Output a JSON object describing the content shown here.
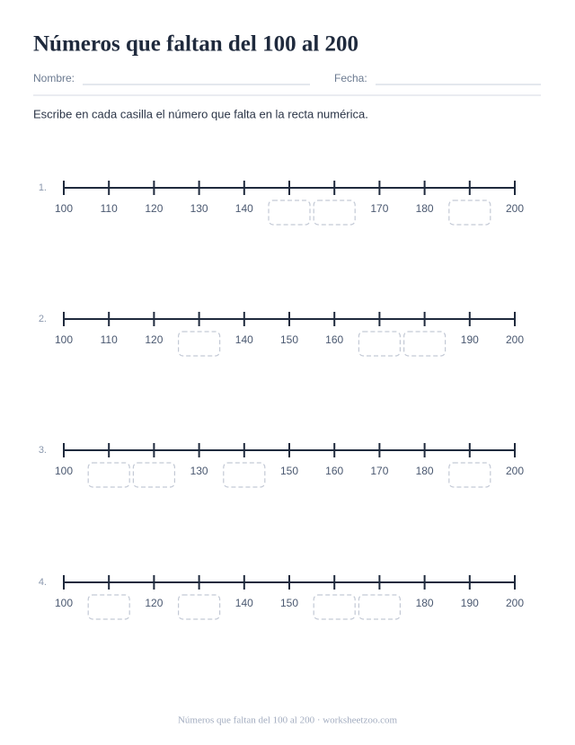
{
  "header": {
    "title": "Números que faltan del 100 al 200",
    "name_label": "Nombre:",
    "date_label": "Fecha:",
    "instruction": "Escribe en cada casilla el número que falta en la recta numérica."
  },
  "number_lines": [
    {
      "number": "1.",
      "labels": [
        100,
        110,
        120,
        130,
        140,
        null,
        null,
        170,
        180,
        null,
        200
      ]
    },
    {
      "number": "2.",
      "labels": [
        100,
        110,
        120,
        null,
        140,
        150,
        160,
        null,
        null,
        190,
        200
      ]
    },
    {
      "number": "3.",
      "labels": [
        100,
        null,
        null,
        130,
        null,
        150,
        160,
        170,
        180,
        null,
        200
      ]
    },
    {
      "number": "4.",
      "labels": [
        100,
        null,
        120,
        null,
        140,
        150,
        null,
        null,
        180,
        190,
        200
      ]
    }
  ],
  "footer": "Números que faltan del 100 al 200 · worksheetzoo.com"
}
